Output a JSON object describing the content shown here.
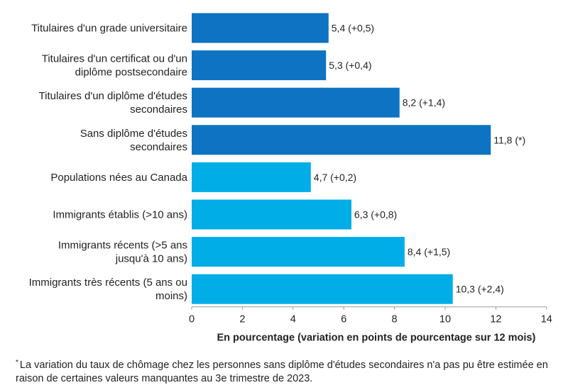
{
  "chart_data": {
    "type": "bar",
    "orientation": "horizontal",
    "categories": [
      [
        "Titulaires d'un grade universitaire"
      ],
      [
        "Titulaires d'un certificat ou d'un",
        "diplôme postsecondaire"
      ],
      [
        "Titulaires d'un diplôme d'études",
        "secondaires"
      ],
      [
        "Sans diplôme d'études",
        "secondaires"
      ],
      [
        "Populations nées au Canada"
      ],
      [
        "Immigrants établis (>10 ans)"
      ],
      [
        "Immigrants récents (>5 ans",
        "jusqu'à 10 ans)"
      ],
      [
        "Immigrants très récents (5 ans ou",
        "moins)"
      ]
    ],
    "values": [
      5.4,
      5.3,
      8.2,
      11.8,
      4.7,
      6.3,
      8.4,
      10.3
    ],
    "value_labels": [
      "5,4 (+0,5)",
      "5,3 (+0,4)",
      "8,2 (+1,4)",
      "11,8 (*)",
      "4,7 (+0,2)",
      "6,3 (+0,8)",
      "8,4 (+1,5)",
      "10,3 (+2,4)"
    ],
    "bar_colors": [
      "#0e73c2",
      "#0e73c2",
      "#0e73c2",
      "#0e73c2",
      "#00ade6",
      "#00ade6",
      "#00ade6",
      "#00ade6"
    ],
    "xlim": [
      0,
      14
    ],
    "xticks": [
      0,
      2,
      4,
      6,
      8,
      10,
      12,
      14
    ],
    "xtick_labels": [
      "0",
      "2",
      "4",
      "6",
      "8",
      "10",
      "12",
      "14"
    ],
    "xlabel": "En pourcentage (variation en points de pourcentage sur 12 mois)",
    "title": "",
    "grid": false,
    "legend": "none"
  },
  "footnote": {
    "marker": "*",
    "text": "La variation du taux de chômage chez les personnes sans diplôme d'études secondaires n'a pas pu être estimée en raison de certaines valeurs manquantes au 3e trimestre de 2023."
  }
}
